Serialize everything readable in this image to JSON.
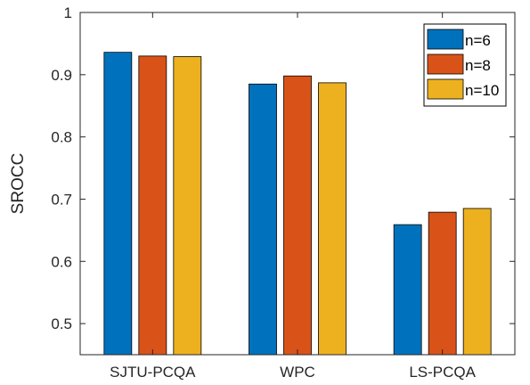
{
  "chart_data": {
    "type": "bar",
    "title": "",
    "xlabel": "",
    "ylabel": "SROCC",
    "categories": [
      "SJTU-PCQA",
      "WPC",
      "LS-PCQA"
    ],
    "series": [
      {
        "name": "n=6",
        "color": "#0072BD",
        "values": [
          0.936,
          0.885,
          0.659
        ]
      },
      {
        "name": "n=8",
        "color": "#D95319",
        "values": [
          0.93,
          0.898,
          0.679
        ]
      },
      {
        "name": "n=10",
        "color": "#EDB120",
        "values": [
          0.929,
          0.887,
          0.685
        ]
      }
    ],
    "ylim": [
      0.45,
      1.0
    ],
    "yticks": [
      "0.5",
      "0.6",
      "0.7",
      "0.8",
      "0.9",
      "1"
    ],
    "grid": false,
    "legend_position": "top-right"
  }
}
